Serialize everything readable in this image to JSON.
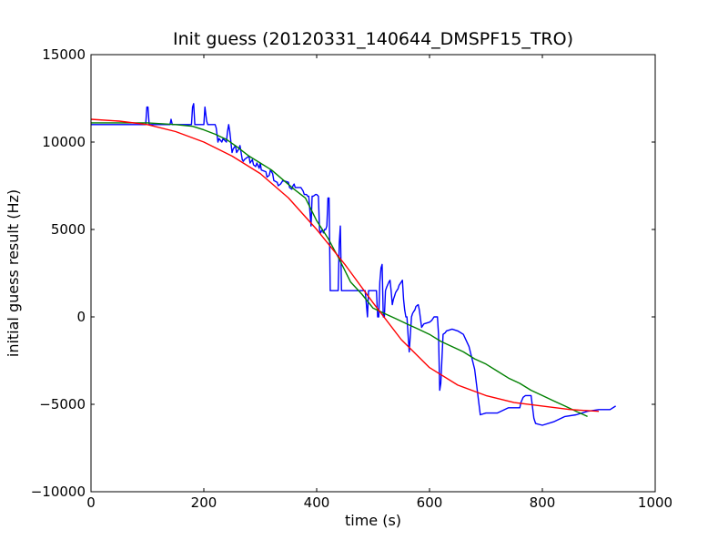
{
  "chart_data": {
    "type": "line",
    "title": "Init guess (20120331_140644_DMSPF15_TRO)",
    "xlabel": "time (s)",
    "ylabel": "initial guess result (Hz)",
    "xlim": [
      0,
      1000
    ],
    "ylim": [
      -10000,
      15000
    ],
    "xticks": [
      0,
      200,
      400,
      600,
      800,
      1000
    ],
    "xtick_labels": [
      "0",
      "200",
      "400",
      "600",
      "800",
      "1000"
    ],
    "yticks": [
      -10000,
      -5000,
      0,
      5000,
      10000,
      15000
    ],
    "ytick_labels": [
      "−10000",
      "−5000",
      "0",
      "5000",
      "10000",
      "15000"
    ],
    "grid": false,
    "legend": "none",
    "series": [
      {
        "color": "#0000ff",
        "x": [
          0,
          97,
          99,
          101,
          103,
          140,
          142,
          144,
          178,
          180,
          182,
          184,
          186,
          200,
          202,
          205,
          207,
          210,
          212,
          220,
          222,
          225,
          227,
          232,
          234,
          240,
          242,
          244,
          246,
          250,
          252,
          256,
          258,
          262,
          264,
          268,
          270,
          272,
          280,
          282,
          286,
          288,
          292,
          294,
          298,
          300,
          302,
          310,
          312,
          316,
          318,
          322,
          324,
          330,
          332,
          336,
          338,
          340,
          350,
          352,
          356,
          358,
          360,
          362,
          370,
          372,
          376,
          378,
          382,
          384,
          386,
          388,
          390,
          392,
          394,
          396,
          398,
          400,
          403,
          405,
          407,
          410,
          412,
          414,
          416,
          418,
          420,
          421,
          422,
          424,
          426,
          428,
          430,
          432,
          434,
          436,
          438,
          440,
          442,
          444,
          446,
          450,
          452,
          454,
          456,
          458,
          460,
          462,
          464,
          466,
          468,
          470,
          480,
          482,
          484,
          486,
          490,
          492,
          494,
          496,
          500,
          502,
          504,
          506,
          508,
          510,
          512,
          514,
          516,
          518,
          520,
          522,
          524,
          528,
          530,
          532,
          534,
          536,
          538,
          540,
          542,
          544,
          546,
          550,
          552,
          554,
          556,
          558,
          560,
          562,
          564,
          568,
          570,
          572,
          574,
          576,
          580,
          582,
          586,
          590,
          600,
          604,
          608,
          610,
          612,
          614,
          616,
          618,
          620,
          624,
          628,
          630,
          640,
          650,
          660,
          670,
          680,
          690,
          700,
          720,
          740,
          750,
          755,
          760,
          762,
          766,
          770,
          775,
          780,
          782,
          785,
          788,
          800,
          820,
          840,
          860,
          880,
          900,
          920,
          930
        ],
        "y": [
          11000,
          11000,
          12000,
          12000,
          11000,
          11000,
          11300,
          11000,
          11000,
          12000,
          12200,
          11000,
          11000,
          11000,
          12000,
          11200,
          11000,
          11000,
          11000,
          11000,
          10800,
          10000,
          10200,
          10000,
          10200,
          10000,
          10600,
          11000,
          10600,
          9400,
          9600,
          9800,
          9400,
          9600,
          9800,
          9000,
          8900,
          9000,
          9200,
          8800,
          9000,
          8700,
          8600,
          8800,
          8500,
          8800,
          8400,
          8300,
          8000,
          8100,
          8400,
          8200,
          7800,
          7700,
          7500,
          7600,
          7700,
          7800,
          7700,
          7400,
          7300,
          7500,
          7600,
          7400,
          7400,
          7400,
          7200,
          7000,
          7000,
          6900,
          6900,
          6000,
          5200,
          6900,
          6900,
          6950,
          7000,
          7000,
          6900,
          5000,
          4800,
          5000,
          4800,
          5000,
          5000,
          5200,
          6800,
          6800,
          6800,
          1500,
          1500,
          1500,
          1500,
          1500,
          1500,
          1500,
          1500,
          4200,
          5200,
          1500,
          1500,
          1500,
          1500,
          1500,
          1500,
          1500,
          1500,
          1500,
          1500,
          1500,
          1500,
          1500,
          1500,
          1500,
          1500,
          1500,
          0,
          1500,
          1500,
          1500,
          1500,
          1500,
          1500,
          1500,
          0,
          0,
          2000,
          2800,
          3000,
          0,
          0,
          1500,
          1700,
          2000,
          2100,
          1500,
          700,
          1000,
          1200,
          1400,
          1500,
          1600,
          1800,
          2000,
          2100,
          1000,
          400,
          0,
          0,
          -1000,
          -2000,
          0,
          200,
          300,
          400,
          600,
          700,
          400,
          -600,
          -400,
          -300,
          -200,
          0,
          0,
          0,
          0,
          -1000,
          -4200,
          -3800,
          -1000,
          -900,
          -800,
          -700,
          -800,
          -1000,
          -1700,
          -3000,
          -5600,
          -5500,
          -5500,
          -5200,
          -5200,
          -5200,
          -5200,
          -4900,
          -4600,
          -4500,
          -4500,
          -4500,
          -5000,
          -5800,
          -6100,
          -6200,
          -6000,
          -5700,
          -5600,
          -5400,
          -5300,
          -5300,
          -5100
        ],
        "line_width": 1.4
      },
      {
        "color": "#008000",
        "x": [
          0,
          50,
          100,
          150,
          180,
          200,
          220,
          240,
          260,
          280,
          300,
          320,
          340,
          360,
          380,
          400,
          420,
          440,
          460,
          480,
          500,
          520,
          540,
          560,
          580,
          600,
          620,
          640,
          660,
          680,
          700,
          720,
          740,
          760,
          780,
          800,
          820,
          840,
          860,
          880
        ],
        "y": [
          11100,
          11100,
          11100,
          11000,
          10900,
          10700,
          10450,
          10150,
          9700,
          9200,
          8800,
          8400,
          7850,
          7300,
          6800,
          5500,
          4500,
          3300,
          2000,
          1300,
          500,
          200,
          -100,
          -400,
          -700,
          -1000,
          -1400,
          -1700,
          -2000,
          -2400,
          -2700,
          -3100,
          -3500,
          -3800,
          -4200,
          -4500,
          -4800,
          -5100,
          -5400,
          -5700
        ],
        "line_width": 1.4
      },
      {
        "color": "#ff0000",
        "x": [
          0,
          50,
          100,
          150,
          200,
          250,
          300,
          350,
          400,
          450,
          500,
          550,
          600,
          650,
          700,
          750,
          800,
          850,
          900
        ],
        "y": [
          11300,
          11200,
          11000,
          10600,
          10000,
          9200,
          8200,
          6800,
          5000,
          3000,
          800,
          -1300,
          -2900,
          -3900,
          -4500,
          -4900,
          -5100,
          -5300,
          -5400
        ],
        "line_width": 1.4
      }
    ]
  }
}
